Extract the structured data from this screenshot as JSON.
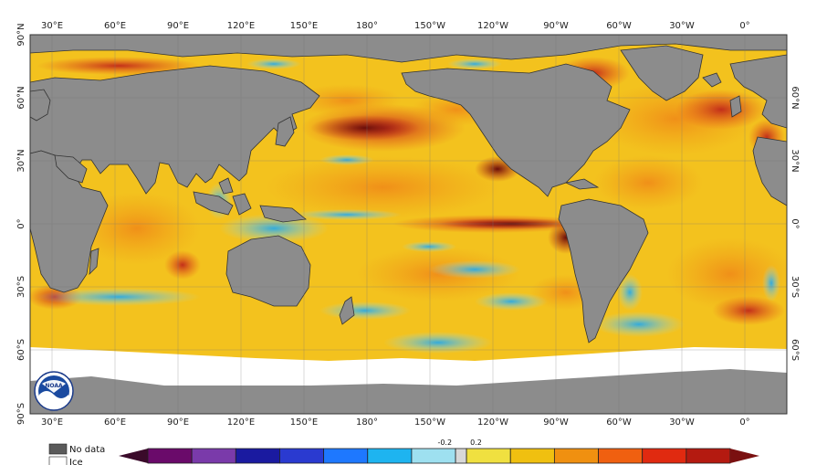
{
  "map": {
    "lon_labels": [
      "30°E",
      "60°E",
      "90°E",
      "120°E",
      "150°E",
      "180°",
      "150°W",
      "120°W",
      "90°W",
      "60°W",
      "30°W",
      "0°"
    ],
    "lat_labels_left": [
      "90°N",
      "60°N",
      "30°N",
      "0°",
      "30°S",
      "60°S",
      "90°S"
    ],
    "lat_labels_right": [
      "60°N",
      "30°N",
      "0°",
      "30°S",
      "60°S"
    ],
    "logo_text": "NOAA"
  },
  "legend": {
    "no_data_label": "No data",
    "ice_label": "Ice",
    "colors": {
      "no_data": "#808080",
      "ice": "#ffffff",
      "land": "#8c8c8c"
    },
    "colorbar": {
      "tick_labels": [
        "-0.2",
        "0.2"
      ],
      "colors": [
        "#3a0a2a",
        "#6a0a6a",
        "#7a3aaa",
        "#1a1aa0",
        "#2a3ad0",
        "#1e78ff",
        "#1eb4f0",
        "#9ee0f0",
        "#d8d8d8",
        "#f0e040",
        "#f0c010",
        "#f09010",
        "#f06010",
        "#e02a10",
        "#b41a10",
        "#7a1010"
      ]
    }
  }
}
